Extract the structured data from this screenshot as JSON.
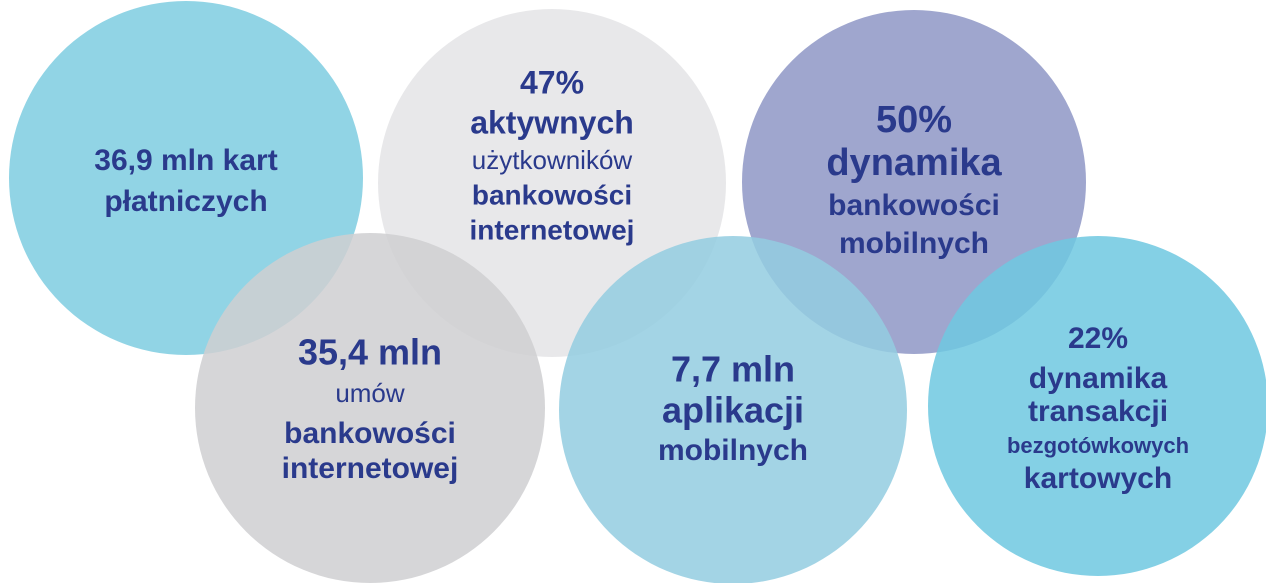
{
  "circles": [
    {
      "lines": [
        "36,9 mln kart",
        "płatniczych"
      ]
    },
    {
      "lines": [
        "47%",
        "aktywnych",
        "użytkowników",
        "bankowości",
        "internetowej"
      ]
    },
    {
      "lines": [
        "50%",
        "dynamika",
        "bankowości",
        "mobilnych"
      ]
    },
    {
      "lines": [
        "35,4 mln",
        "umów",
        "bankowości",
        "internetowej"
      ]
    },
    {
      "lines": [
        "7,7 mln",
        "aplikacji",
        "mobilnych"
      ]
    },
    {
      "lines": [
        "22%",
        "dynamika",
        "transakcji",
        "bezgotówkowych",
        "kartowych"
      ]
    }
  ]
}
